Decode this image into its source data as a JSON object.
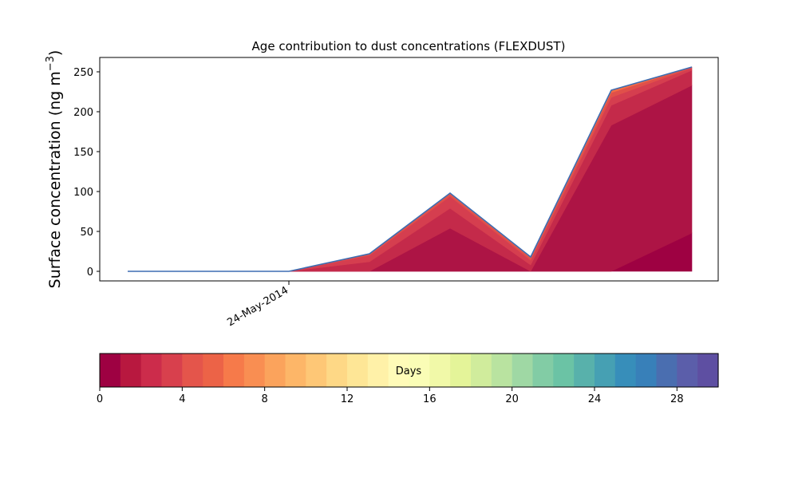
{
  "chart_data": {
    "type": "area",
    "title": "Age contribution to dust concentrations (FLEXDUST)",
    "ylabel_main": "Surface concentration (ng m",
    "ylabel_sup": "−3",
    "ylabel_close": ")",
    "xlabel": "",
    "x_tick_labels": [
      "24-May-2014"
    ],
    "x_tick_positions": [
      2
    ],
    "x": [
      0,
      1,
      2,
      3,
      4,
      5,
      6,
      7
    ],
    "ylim": [
      -12,
      268
    ],
    "y_ticks": [
      0,
      50,
      100,
      150,
      200,
      250
    ],
    "stacked_area": true,
    "series": [
      {
        "age_day": 0,
        "color": "#9e0142",
        "values": [
          0,
          0,
          0,
          0,
          0,
          0,
          0,
          48
        ]
      },
      {
        "age_day": 1,
        "color": "#ad1445",
        "values": [
          0,
          0,
          0,
          0,
          54,
          0,
          183,
          185
        ]
      },
      {
        "age_day": 2,
        "color": "#c42a4a",
        "values": [
          0,
          0,
          0,
          12,
          25,
          8,
          25,
          19
        ]
      },
      {
        "age_day": 3,
        "color": "#d53e4f",
        "values": [
          0,
          0,
          0,
          8,
          15,
          6,
          10,
          3
        ]
      },
      {
        "age_day": 4,
        "color": "#e0504a",
        "values": [
          0,
          0,
          0,
          2,
          3,
          3,
          6,
          1
        ]
      },
      {
        "age_day": 5,
        "color": "#f46d43",
        "values": [
          0,
          0,
          0,
          0,
          1,
          1,
          3,
          0
        ]
      }
    ],
    "total": [
      0,
      0,
      0,
      22,
      98,
      18,
      227,
      256
    ],
    "total_line_color": "#3d6db2",
    "colorbar": {
      "label": "Days",
      "min": 0,
      "max": 30,
      "ticks": [
        0,
        4,
        8,
        12,
        16,
        20,
        24,
        28
      ],
      "colors": [
        "#9e0142",
        "#b8183f",
        "#cc2c4b",
        "#d8404d",
        "#e4554b",
        "#ec6347",
        "#f67a4a",
        "#f98e52",
        "#fba35c",
        "#fdb668",
        "#fec776",
        "#fed886",
        "#fee696",
        "#fff1a8",
        "#fffbb8",
        "#fafdb6",
        "#f1f9a8",
        "#e4f499",
        "#d0ec9c",
        "#b9e3a0",
        "#9fd8a4",
        "#82cca5",
        "#6bc3a5",
        "#58b1ab",
        "#46a0b3",
        "#378eba",
        "#3880b9",
        "#4a6eb0",
        "#5b5eaa",
        "#5e4fa2"
      ]
    }
  }
}
